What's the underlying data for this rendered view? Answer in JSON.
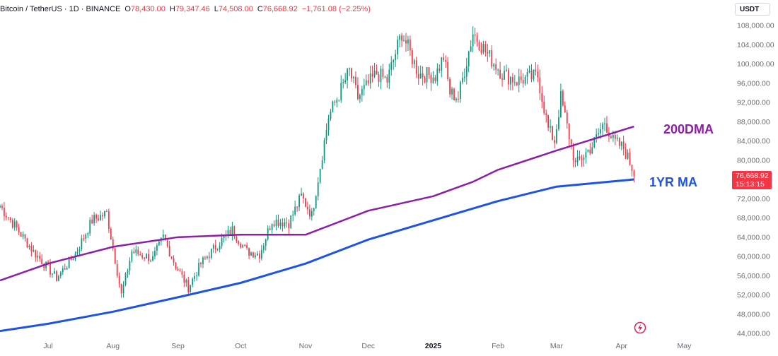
{
  "header": {
    "symbol": "Bitcoin / TetherUS · 1D · BINANCE",
    "open_label": "O",
    "open": "78,430.00",
    "high_label": "H",
    "high": "79,347.46",
    "low_label": "L",
    "low": "74,508.00",
    "close_label": "C",
    "close": "76,668.92",
    "change": "−1,761.08 (−2.25%)"
  },
  "currency": "USDT",
  "price_tag": {
    "price": "76,668.92",
    "countdown": "15:13:15"
  },
  "colors": {
    "up": "#089981",
    "down": "#f23645",
    "ma200": "#8e1ea8",
    "ma1yr": "#1e53e5",
    "grid": "#f0f3fa",
    "axis_text": "#6a6d78"
  },
  "icon": "flash-icon",
  "chart_data": {
    "type": "candlestick",
    "y_axis": {
      "min": 44000,
      "max": 110000,
      "scale": "linear",
      "position": "right",
      "ticks": [
        "108,000.00",
        "104,000.00",
        "100,000.00",
        "96,000.00",
        "92,000.00",
        "88,000.00",
        "84,000.00",
        "80,000.00",
        "76,000.00",
        "72,000.00",
        "68,000.00",
        "64,000.00",
        "60,000.00",
        "56,000.00",
        "52,000.00",
        "48,000.00",
        "44,000.00"
      ]
    },
    "x_axis": {
      "range": [
        "2024-06-08",
        "2025-05-12"
      ],
      "ticks": [
        "Jul",
        "Aug",
        "Sep",
        "Oct",
        "Nov",
        "Dec",
        "2025",
        "Feb",
        "Mar",
        "Apr",
        "May"
      ]
    },
    "grid": false,
    "candle_anchors": [
      [
        "2024-06-08",
        70500
      ],
      [
        "2024-06-14",
        67000
      ],
      [
        "2024-06-24",
        61000
      ],
      [
        "2024-07-05",
        55500
      ],
      [
        "2024-07-14",
        60500
      ],
      [
        "2024-07-22",
        67500
      ],
      [
        "2024-07-29",
        69000
      ],
      [
        "2024-08-05",
        52000
      ],
      [
        "2024-08-10",
        61000
      ],
      [
        "2024-08-20",
        59500
      ],
      [
        "2024-08-25",
        64000
      ],
      [
        "2024-08-31",
        58000
      ],
      [
        "2024-09-06",
        53500
      ],
      [
        "2024-09-12",
        58500
      ],
      [
        "2024-09-20",
        62500
      ],
      [
        "2024-09-27",
        65500
      ],
      [
        "2024-10-04",
        61000
      ],
      [
        "2024-10-10",
        60500
      ],
      [
        "2024-10-16",
        67500
      ],
      [
        "2024-10-24",
        67000
      ],
      [
        "2024-10-30",
        72500
      ],
      [
        "2024-11-04",
        68500
      ],
      [
        "2024-11-12",
        89000
      ],
      [
        "2024-11-22",
        98500
      ],
      [
        "2024-11-26",
        93000
      ],
      [
        "2024-12-05",
        98000
      ],
      [
        "2024-12-10",
        96500
      ],
      [
        "2024-12-17",
        106500
      ],
      [
        "2024-12-25",
        98000
      ],
      [
        "2025-01-02",
        97500
      ],
      [
        "2025-01-06",
        101500
      ],
      [
        "2025-01-09",
        94000
      ],
      [
        "2025-01-13",
        93000
      ],
      [
        "2025-01-20",
        106500
      ],
      [
        "2025-01-27",
        102000
      ],
      [
        "2025-02-03",
        98000
      ],
      [
        "2025-02-10",
        96500
      ],
      [
        "2025-02-20",
        97500
      ],
      [
        "2025-02-25",
        86500
      ],
      [
        "2025-02-28",
        84000
      ],
      [
        "2025-03-03",
        93000
      ],
      [
        "2025-03-10",
        79000
      ],
      [
        "2025-03-18",
        83000
      ],
      [
        "2025-03-24",
        88000
      ],
      [
        "2025-03-28",
        84000
      ],
      [
        "2025-04-02",
        82500
      ],
      [
        "2025-04-06",
        78430
      ],
      [
        "2025-04-07",
        76669
      ]
    ],
    "series": [
      {
        "name": "200DMA",
        "values": [
          [
            "2024-06-08",
            55000
          ],
          [
            "2024-07-01",
            58500
          ],
          [
            "2024-08-01",
            62000
          ],
          [
            "2024-09-01",
            64000
          ],
          [
            "2024-10-01",
            64500
          ],
          [
            "2024-11-01",
            64500
          ],
          [
            "2024-12-01",
            69500
          ],
          [
            "2025-01-01",
            72500
          ],
          [
            "2025-01-20",
            75500
          ],
          [
            "2025-02-01",
            78000
          ],
          [
            "2025-03-01",
            82000
          ],
          [
            "2025-04-07",
            87000
          ]
        ]
      },
      {
        "name": "1YR MA",
        "values": [
          [
            "2024-06-08",
            44500
          ],
          [
            "2024-07-01",
            46000
          ],
          [
            "2024-08-01",
            48500
          ],
          [
            "2024-09-01",
            51500
          ],
          [
            "2024-10-01",
            54500
          ],
          [
            "2024-11-01",
            58500
          ],
          [
            "2024-12-01",
            63500
          ],
          [
            "2025-01-01",
            67500
          ],
          [
            "2025-02-01",
            71500
          ],
          [
            "2025-03-01",
            74500
          ],
          [
            "2025-04-07",
            76000
          ]
        ]
      }
    ]
  }
}
